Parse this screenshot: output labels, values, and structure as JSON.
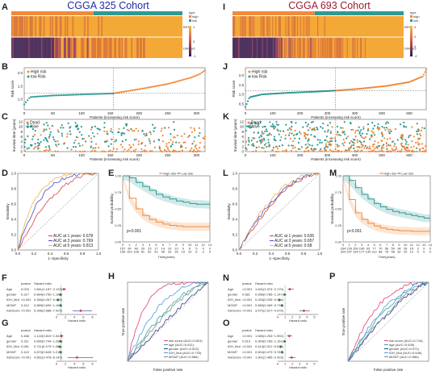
{
  "colors": {
    "high": "#f08a3c",
    "low": "#2f9a94",
    "heat_high": "#f4a836",
    "heat_low": "#2a1a57",
    "cohort_left": "#1f2aa3",
    "cohort_right": "#9c1b34"
  },
  "chart_data": [
    {
      "id": "A",
      "type": "heatmap",
      "cohort": "CGGA 325 Cohort",
      "rows": [
        "BST2",
        "DIRAS3"
      ],
      "legend_title": "type",
      "legend_items": [
        "high",
        "low"
      ],
      "scale_ticks": [
        "1",
        "0",
        "-1"
      ],
      "split_fraction": 0.48,
      "row_means": [
        0.55,
        0.35
      ]
    },
    {
      "id": "B",
      "type": "scatter",
      "xlabel": "Patients (increasing risk score)",
      "ylabel": "Risk score",
      "legend": [
        "High risk",
        "low Risk"
      ],
      "cutoff": 155,
      "ylim": [
        0.6,
        2.2
      ],
      "yticks": [
        "1.0",
        "1.5",
        "2.0"
      ],
      "xticks": [
        "0",
        "50",
        "100",
        "150",
        "200",
        "250",
        "300"
      ],
      "curve": [
        [
          0,
          0.8
        ],
        [
          10,
          1.08
        ],
        [
          50,
          1.14
        ],
        [
          100,
          1.18
        ],
        [
          155,
          1.22
        ],
        [
          200,
          1.38
        ],
        [
          250,
          1.58
        ],
        [
          290,
          1.82
        ],
        [
          305,
          1.95
        ],
        [
          315,
          2.1
        ]
      ]
    },
    {
      "id": "C",
      "type": "scatter",
      "xlabel": "Patients (increasing risk score)",
      "ylabel": "Survival time (years)",
      "legend": [
        "Dead",
        "Alive"
      ],
      "cutoff": 155,
      "ylim": [
        0,
        13
      ],
      "yticks": [
        "0",
        "2",
        "4",
        "6",
        "8",
        "10",
        "12"
      ],
      "xticks": [
        "0",
        "50",
        "100",
        "150",
        "200",
        "250",
        "300"
      ]
    },
    {
      "id": "D",
      "type": "line",
      "xlabel": "1−Specificity",
      "ylabel": "Sensitivity",
      "ticks": [
        "0.0",
        "0.2",
        "0.4",
        "0.6",
        "0.8",
        "1.0"
      ],
      "series": [
        {
          "name": "AUC at 1 years: 0.678",
          "color": "#d94040",
          "auc": 0.678
        },
        {
          "name": "AUC at 3 years: 0.769",
          "color": "#3f4fd6",
          "auc": 0.769
        },
        {
          "name": "AUC at 5 years: 0.813",
          "color": "#e8b84a",
          "auc": 0.813
        }
      ]
    },
    {
      "id": "E",
      "type": "line",
      "xlabel": "Time(years)",
      "ylabel": "Survival probability",
      "pvalue": "p<0.001",
      "legend": [
        "High risk",
        "Low risk"
      ],
      "time": [
        0,
        1,
        2,
        3,
        4,
        5,
        6,
        7,
        8,
        9,
        10,
        11,
        12,
        13
      ],
      "series": [
        {
          "name": "High risk",
          "color": "#f08a3c",
          "values": [
            1.0,
            0.66,
            0.5,
            0.4,
            0.34,
            0.3,
            0.27,
            0.25,
            0.24,
            0.23,
            0.23,
            0.23,
            0.23,
            0.23
          ]
        },
        {
          "name": "Low risk",
          "color": "#2f9a94",
          "values": [
            1.0,
            0.97,
            0.9,
            0.84,
            0.78,
            0.72,
            0.68,
            0.65,
            0.62,
            0.6,
            0.58,
            0.57,
            0.57,
            0.56
          ]
        }
      ],
      "risk_table": [
        [
          "157",
          "99",
          "48",
          "29",
          "23",
          "17",
          "14",
          "10",
          "10",
          "9",
          "6",
          "5",
          "0",
          "0"
        ],
        [
          "156",
          "103",
          "108",
          "81",
          "62",
          "51",
          "46",
          "33",
          "26",
          "19",
          "10",
          "6",
          "3",
          "0"
        ]
      ]
    },
    {
      "id": "F",
      "type": "table",
      "xlabel": "Hazard ratio",
      "headers": [
        "pvalue",
        "Hazard ratio"
      ],
      "rows": [
        {
          "name": "Age",
          "p": "0.003",
          "hr": "1.661(1.187~2.133)",
          "v": 1.66,
          "lo": 1.19,
          "hi": 2.13
        },
        {
          "name": "gender",
          "p": "0.317",
          "hr": "0.864(0.750~1.163)",
          "v": 0.86,
          "lo": 0.75,
          "hi": 1.16
        },
        {
          "name": "IDH_Mut",
          "p": "<0.001",
          "hr": "0.350(0.267~0.459)",
          "v": 0.35,
          "lo": 0.27,
          "hi": 0.46
        },
        {
          "name": "MGMT",
          "p": "0.412",
          "hr": "0.889(0.690~1.166)",
          "v": 0.89,
          "lo": 0.69,
          "hi": 1.17
        },
        {
          "name": "riskScore",
          "p": "<0.001",
          "hr": "5.396(3.588~7.925)",
          "v": 5.4,
          "lo": 3.59,
          "hi": 7.93
        }
      ],
      "xticks": [
        "0",
        "2",
        "4",
        "6",
        "8"
      ],
      "xmax": 9
    },
    {
      "id": "G",
      "type": "table",
      "xlabel": "Hazard ratio",
      "headers": [
        "pvalue",
        "Hazard ratio"
      ],
      "rows": [
        {
          "name": "Age",
          "p": "0.466",
          "hr": "1.122(0.815~1.543)",
          "v": 1.12,
          "lo": 0.82,
          "hi": 1.54
        },
        {
          "name": "gender",
          "p": "0.311",
          "hr": "0.890(0.744~1.285)",
          "v": 0.89,
          "lo": 0.74,
          "hi": 1.29
        },
        {
          "name": "IDH_Mut",
          "p": "0.081",
          "hr": "0.711(0.479~1.061)",
          "v": 0.71,
          "lo": 0.48,
          "hi": 1.06
        },
        {
          "name": "MGMT",
          "p": "0.422",
          "hr": "0.873(0.628~1.215)",
          "v": 0.87,
          "lo": 0.63,
          "hi": 1.22
        },
        {
          "name": "riskScore",
          "p": "<0.001",
          "hr": "4.561(2.478~8.142)",
          "v": 4.56,
          "lo": 2.48,
          "hi": 8.14
        }
      ],
      "xticks": [
        "0",
        "2",
        "4",
        "6",
        "8"
      ],
      "xmax": 9
    },
    {
      "id": "H",
      "type": "line",
      "xlabel": "False positive rate",
      "ylabel": "True positive rate",
      "series": [
        {
          "name": "risk score (AUC=0.824)",
          "color": "#e04070",
          "auc": 0.824
        },
        {
          "name": "age (AUC=0.611)",
          "color": "#2aa7a0",
          "auc": 0.611
        },
        {
          "name": "gender (AUC=0.522)",
          "color": "#2c3e8f",
          "auc": 0.522
        },
        {
          "name": "IDH_Mut (AUC=0.703)",
          "color": "#4e9dd4",
          "auc": 0.703
        },
        {
          "name": "MGMT (AUC=0.586)",
          "color": "#8a8a8a",
          "auc": 0.586
        }
      ]
    },
    {
      "id": "I",
      "type": "heatmap",
      "cohort": "CGGA 693 Cohort",
      "rows": [
        "BST2",
        "DIRAS3"
      ],
      "legend_title": "type",
      "legend_items": [
        "high",
        "low"
      ],
      "scale_ticks": [
        "4",
        "2",
        "0",
        "-2"
      ],
      "split_fraction": 0.48,
      "row_means": [
        0.55,
        0.4
      ]
    },
    {
      "id": "J",
      "type": "scatter",
      "xlabel": "Patients (increasing risk score)",
      "ylabel": "Risk score",
      "legend": [
        "High risk",
        "low Risk"
      ],
      "cutoff": 330,
      "ylim": [
        0.2,
        2.4
      ],
      "yticks": [
        "0.5",
        "1.0",
        "1.5",
        "2.0"
      ],
      "xticks": [
        "0",
        "100",
        "200",
        "300",
        "400",
        "500",
        "600"
      ],
      "curve": [
        [
          0,
          0.35
        ],
        [
          15,
          0.85
        ],
        [
          60,
          1.0
        ],
        [
          150,
          1.08
        ],
        [
          250,
          1.14
        ],
        [
          330,
          1.2
        ],
        [
          420,
          1.3
        ],
        [
          520,
          1.45
        ],
        [
          600,
          1.65
        ],
        [
          650,
          1.95
        ],
        [
          662,
          2.3
        ]
      ]
    },
    {
      "id": "K",
      "type": "scatter",
      "xlabel": "Patients (increasing risk score)",
      "ylabel": "Survival time (years)",
      "legend": [
        "Dead",
        "Alive"
      ],
      "cutoff": 330,
      "ylim": [
        0,
        13
      ],
      "yticks": [
        "0",
        "2",
        "4",
        "6",
        "8",
        "10",
        "12"
      ],
      "xticks": [
        "0",
        "100",
        "200",
        "300",
        "400",
        "500",
        "600"
      ]
    },
    {
      "id": "L",
      "type": "line",
      "xlabel": "1−Specificity",
      "ylabel": "Sensitivity",
      "ticks": [
        "0.0",
        "0.2",
        "0.4",
        "0.6",
        "0.8",
        "1.0"
      ],
      "series": [
        {
          "name": "AUC at 1 years: 0.635",
          "color": "#d94040",
          "auc": 0.635
        },
        {
          "name": "AUC at 3 years: 0.657",
          "color": "#3f4fd6",
          "auc": 0.657
        },
        {
          "name": "AUC at 5 years: 0.68",
          "color": "#e8b84a",
          "auc": 0.68
        }
      ]
    },
    {
      "id": "M",
      "type": "line",
      "xlabel": "Time(years)",
      "ylabel": "Survival probability",
      "pvalue": "p<0.001",
      "legend": [
        "High risk",
        "Low risk"
      ],
      "time": [
        0,
        1,
        2,
        3,
        4,
        5,
        6,
        7,
        8,
        9,
        10,
        11,
        12,
        13,
        14
      ],
      "series": [
        {
          "name": "High risk",
          "color": "#f08a3c",
          "values": [
            1.0,
            0.64,
            0.44,
            0.34,
            0.28,
            0.24,
            0.21,
            0.19,
            0.18,
            0.17,
            0.17,
            0.16,
            0.16,
            0.16,
            0.16
          ]
        },
        {
          "name": "Low risk",
          "color": "#2f9a94",
          "values": [
            1.0,
            0.93,
            0.82,
            0.72,
            0.65,
            0.58,
            0.53,
            0.49,
            0.46,
            0.44,
            0.42,
            0.4,
            0.38,
            0.36,
            0.36
          ]
        }
      ],
      "risk_table": [
        [
          "334",
          "239",
          "150",
          "106",
          "93",
          "77",
          "70",
          "56",
          "50",
          "34",
          "28",
          "16",
          "3",
          "0",
          "0"
        ],
        [
          "329",
          "247",
          "194",
          "177",
          "130",
          "112",
          "88",
          "76",
          "48",
          "32",
          "20",
          "12",
          "5",
          "0",
          "0"
        ]
      ]
    },
    {
      "id": "N",
      "type": "table",
      "xlabel": "Hazard ratio",
      "headers": [
        "pvalue",
        "Hazard ratio"
      ],
      "rows": [
        {
          "name": "Age",
          "p": "<0.001",
          "hr": "1.641(1.374~2.170)",
          "v": 1.64,
          "lo": 1.37,
          "hi": 2.17
        },
        {
          "name": "gender",
          "p": "0.581",
          "hr": "0.956(0.785~1.147)",
          "v": 0.96,
          "lo": 0.79,
          "hi": 1.15
        },
        {
          "name": "IDH_Mut",
          "p": "<0.001",
          "hr": "0.253(0.205~0.314)",
          "v": 0.25,
          "lo": 0.21,
          "hi": 0.31
        },
        {
          "name": "MGMT",
          "p": "<0.001",
          "hr": "0.580(0.469~0.718)",
          "v": 0.58,
          "lo": 0.47,
          "hi": 0.72
        },
        {
          "name": "riskScore",
          "p": "<0.001",
          "hr": "3.572(2.917~4.376)",
          "v": 3.57,
          "lo": 2.92,
          "hi": 4.38
        }
      ],
      "xticks": [
        "0",
        "1",
        "2",
        "3",
        "4",
        "5"
      ],
      "xmax": 5.5
    },
    {
      "id": "O",
      "type": "table",
      "xlabel": "Hazard ratio",
      "headers": [
        "pvalue",
        "Hazard ratio"
      ],
      "rows": [
        {
          "name": "Age",
          "p": "<0.001",
          "hr": "1.580(1.253~1.992)",
          "v": 1.58,
          "lo": 1.25,
          "hi": 1.99
        },
        {
          "name": "gender",
          "p": "0.519",
          "hr": "0.954(0.783~1.161)",
          "v": 0.95,
          "lo": 0.78,
          "hi": 1.16
        },
        {
          "name": "IDH_Mut",
          "p": "<0.001",
          "hr": "0.414(0.321~0.534)",
          "v": 0.41,
          "lo": 0.32,
          "hi": 0.53
        },
        {
          "name": "MGMT",
          "p": "<0.001",
          "hr": "0.604(0.479~0.761)",
          "v": 0.6,
          "lo": 0.48,
          "hi": 0.76
        },
        {
          "name": "riskScore",
          "p": "<0.001",
          "hr": "1.901(1.485~2.433)",
          "v": 1.9,
          "lo": 1.49,
          "hi": 2.43
        }
      ],
      "xticks": [
        "0",
        "1",
        "2",
        "3",
        "4",
        "5"
      ],
      "xmax": 5.5
    },
    {
      "id": "P",
      "type": "line",
      "xlabel": "False positive rate",
      "ylabel": "True positive rate",
      "series": [
        {
          "name": "risk score (AUC=0.718)",
          "color": "#e04070",
          "auc": 0.718
        },
        {
          "name": "age (AUC=0.626)",
          "color": "#2aa7a0",
          "auc": 0.626
        },
        {
          "name": "gender (AUC=0.571)",
          "color": "#2c3e8f",
          "auc": 0.571
        },
        {
          "name": "IDH_Mut (AUC=0.646)",
          "color": "#4e9dd4",
          "auc": 0.646
        },
        {
          "name": "MGMT (AUC=0.586)",
          "color": "#8a8a8a",
          "auc": 0.586
        }
      ]
    }
  ]
}
